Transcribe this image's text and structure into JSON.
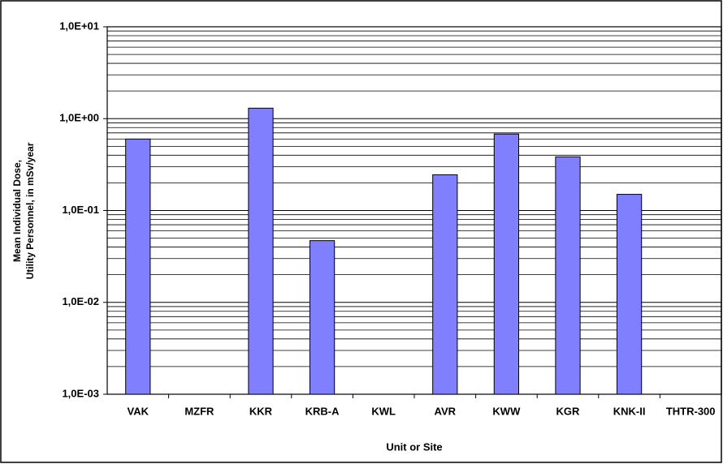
{
  "chart_data": {
    "type": "bar",
    "categories": [
      "VAK",
      "MZFR",
      "KKR",
      "KRB-A",
      "KWL",
      "AVR",
      "KWW",
      "KGR",
      "KNK-II",
      "THTR-300"
    ],
    "values": [
      0.6,
      null,
      1.3,
      0.047,
      null,
      0.245,
      0.68,
      0.384,
      0.15,
      null
    ],
    "color": "#8080ff",
    "ylim": [
      0.001,
      10
    ],
    "log_y": true,
    "grid": true,
    "yticks": [
      {
        "value": 0.001,
        "label": "1,0E-03"
      },
      {
        "value": 0.01,
        "label": "1,0E-02"
      },
      {
        "value": 0.1,
        "label": "1,0E-01"
      },
      {
        "value": 1,
        "label": "1,0E+00"
      },
      {
        "value": 10,
        "label": "1,0E+01"
      }
    ],
    "xlabel": "Unit or Site",
    "ylabel": [
      "Mean Individual Dose,",
      "Utility Personnel, in mSv/year"
    ]
  }
}
